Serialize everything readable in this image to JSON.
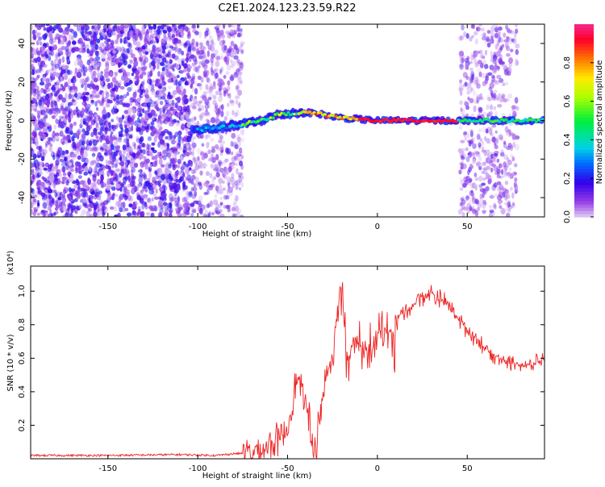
{
  "title": "C2E1.2024.123.23.59.R22",
  "chart_data": [
    {
      "type": "heatmap",
      "xlabel": "Height of straight line (km)",
      "ylabel": "Frequency (Hz)",
      "xlim": [
        -193,
        93
      ],
      "ylim": [
        -50,
        50
      ],
      "x_ticks": [
        -150,
        -100,
        -50,
        0,
        50
      ],
      "y_ticks": [
        -40,
        -20,
        0,
        20,
        40
      ],
      "colorbar": {
        "label": "Normalized spectral amplitude",
        "range": [
          0,
          1
        ],
        "ticks": [
          0.0,
          0.2,
          0.4,
          0.6,
          0.8
        ]
      },
      "noise_regions": [
        {
          "x": [
            -193,
            -103
          ],
          "y": [
            -50,
            50
          ],
          "density": "high"
        },
        {
          "x": [
            -103,
            -75
          ],
          "y": [
            -50,
            50
          ],
          "density": "medium"
        },
        {
          "x": [
            46,
            78
          ],
          "y": [
            -50,
            50
          ],
          "density": "medium"
        }
      ],
      "signal_trace": [
        {
          "x": -103,
          "y": -5
        },
        {
          "x": -90,
          "y": -4
        },
        {
          "x": -75,
          "y": -2
        },
        {
          "x": -65,
          "y": 0
        },
        {
          "x": -55,
          "y": 3
        },
        {
          "x": -45,
          "y": 4
        },
        {
          "x": -35,
          "y": 4
        },
        {
          "x": -25,
          "y": 2
        },
        {
          "x": -15,
          "y": 1
        },
        {
          "x": 0,
          "y": 0
        },
        {
          "x": 20,
          "y": 0
        },
        {
          "x": 40,
          "y": 0
        },
        {
          "x": 60,
          "y": 0
        },
        {
          "x": 80,
          "y": 0
        },
        {
          "x": 93,
          "y": 0
        }
      ],
      "grid": true
    },
    {
      "type": "line",
      "xlabel": "Height of straight line (km)",
      "ylabel": "SNR (10 * v/v)",
      "y_multiplier": "(x10⁴)",
      "xlim": [
        -193,
        93
      ],
      "ylim": [
        0,
        1.15
      ],
      "x_ticks": [
        -150,
        -100,
        -50,
        0,
        50
      ],
      "y_ticks": [
        0.2,
        0.4,
        0.6,
        0.8,
        1.0
      ],
      "series": [
        {
          "color": "#ee2222",
          "x": [
            -193,
            -150,
            -110,
            -90,
            -80,
            -70,
            -62,
            -55,
            -50,
            -45,
            -40,
            -37,
            -34,
            -30,
            -25,
            -22,
            -20,
            -17,
            -13,
            -8,
            -3,
            3,
            8,
            12,
            18,
            25,
            30,
            35,
            40,
            45,
            50,
            55,
            60,
            65,
            70,
            75,
            80,
            85,
            93
          ],
          "y": [
            0.02,
            0.02,
            0.025,
            0.02,
            0.03,
            0.035,
            0.07,
            0.12,
            0.18,
            0.48,
            0.35,
            0.1,
            0.06,
            0.42,
            0.62,
            0.88,
            1.05,
            0.58,
            0.72,
            0.64,
            0.66,
            0.78,
            0.74,
            0.85,
            0.9,
            0.97,
            0.99,
            0.95,
            0.92,
            0.84,
            0.77,
            0.72,
            0.66,
            0.62,
            0.59,
            0.58,
            0.56,
            0.55,
            0.6
          ]
        }
      ],
      "grid": true
    }
  ]
}
